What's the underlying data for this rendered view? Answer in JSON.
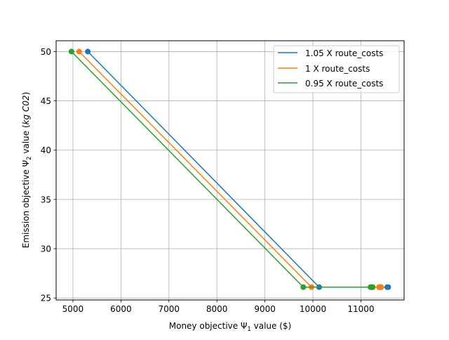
{
  "chart_data": {
    "type": "line",
    "xlabel": "Money objective Ψ",
    "xlabel_sub": "1",
    "xlabel_suffix": " value ($)",
    "ylabel": "Emission objective Ψ",
    "ylabel_sub": "2",
    "ylabel_mid": " value (",
    "ylabel_italic": "kg C02",
    "ylabel_suffix": ")",
    "xlim": [
      4650,
      11900
    ],
    "ylim": [
      24.8,
      51.1
    ],
    "xticks": [
      5000,
      6000,
      7000,
      8000,
      9000,
      10000,
      11000
    ],
    "yticks": [
      25,
      30,
      35,
      40,
      45,
      50
    ],
    "grid": true,
    "legend_position": "upper right",
    "series": [
      {
        "name": "1.05 X route_costs",
        "color": "#1f77b4",
        "points": [
          [
            5310,
            50.0
          ],
          [
            10130,
            26.1
          ],
          [
            11380,
            26.1
          ],
          [
            11400,
            26.1
          ],
          [
            11420,
            26.1
          ],
          [
            11550,
            26.1
          ],
          [
            11570,
            26.1
          ]
        ]
      },
      {
        "name": "1 X route_costs",
        "color": "#ff7f0e",
        "points": [
          [
            5130,
            50.0
          ],
          [
            9970,
            26.1
          ],
          [
            11230,
            26.1
          ],
          [
            11250,
            26.1
          ],
          [
            11380,
            26.1
          ],
          [
            11400,
            26.1
          ],
          [
            11420,
            26.1
          ]
        ]
      },
      {
        "name": "0.95 X route_costs",
        "color": "#2ca02c",
        "points": [
          [
            4970,
            50.0
          ],
          [
            9800,
            26.1
          ],
          [
            11200,
            26.1
          ],
          [
            11220,
            26.1
          ],
          [
            11240,
            26.1
          ]
        ]
      }
    ]
  }
}
